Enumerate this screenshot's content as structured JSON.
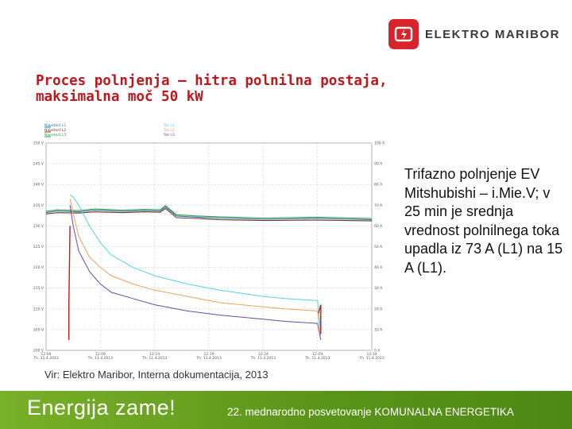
{
  "brand": {
    "name": "ELEKTRO MARIBOR",
    "colors": {
      "brand_red": "#d8232a",
      "title_red": "#c0161c",
      "footer_green": "#6aa221"
    }
  },
  "slide": {
    "title_lines": [
      "Proces polnjenja – hitra polnilna postaja,",
      "maksimalna moč 50 kW"
    ],
    "caption": "Trifazno polnjenje EV Mitshubishi – i.Mie.V; v 25 min je srednja vrednost polnilnega toka upadla iz 73 A (L1) na 15 A (L1).",
    "source": "Vir: Elektro Maribor, Interna dokumentacija, 2013"
  },
  "footer": {
    "slogan": "Energija zame!",
    "conference": "22. mednarodno posvetovanje KOMUNALNA ENERGETIKA"
  },
  "chart_data": {
    "type": "line",
    "legend_left": [
      "Napetost L1",
      "Napetost L2",
      "Napetost L3"
    ],
    "legend_right": [
      "Tok L1",
      "Tok L2",
      "Tok L3"
    ],
    "x_ticks": [
      {
        "time": "12:04",
        "date": "Th. 11.4.2013"
      },
      {
        "time": "12:09",
        "date": "Th. 11.4.2013"
      },
      {
        "time": "12:14",
        "date": "Th. 11.4.2013"
      },
      {
        "time": "12:19",
        "date": "Th. 11.4.2013"
      },
      {
        "time": "12:24",
        "date": "Th. 11.4.2013"
      },
      {
        "time": "12:29",
        "date": "Th. 11.4.2013"
      },
      {
        "time": "12:34",
        "date": "Th. 11.4.2013"
      }
    ],
    "y_left": [
      "250 V",
      "245 V",
      "240 V",
      "235 V",
      "230 V",
      "225 V",
      "220 V",
      "215 V",
      "210 V",
      "205 V",
      "200 V"
    ],
    "y_right": [
      "100 A",
      "90 A",
      "80 A",
      "70 A",
      "60 A",
      "50 A",
      "40 A",
      "30 A",
      "20 A",
      "10 A",
      "0 A"
    ],
    "ylim_left": [
      200,
      250
    ],
    "ylim_right": [
      0,
      100
    ],
    "xlim_min": [
      0,
      30
    ],
    "series_colors": {
      "voltage": [
        "#2a7aa8",
        "#7a3a2a",
        "#3a9a4a"
      ],
      "current": [
        "#4fd4e6",
        "#f0a060",
        "#6a4aa8"
      ],
      "marker": "#c81818"
    },
    "voltage_series": [
      {
        "name": "Napetost L1",
        "x": [
          0,
          1,
          3,
          4.5,
          7,
          9,
          10.5,
          11,
          12,
          14,
          16,
          20,
          25,
          30
        ],
        "y": [
          233.2,
          233.6,
          233.4,
          233.8,
          233.5,
          233.7,
          233.6,
          234.6,
          232.4,
          232.1,
          231.9,
          231.6,
          231.8,
          231.5
        ]
      },
      {
        "name": "Napetost L2",
        "x": [
          0,
          1,
          3,
          4.5,
          7,
          9,
          10.5,
          11,
          12,
          14,
          16,
          20,
          25,
          30
        ],
        "y": [
          232.9,
          233.2,
          233.1,
          233.4,
          233.2,
          233.4,
          233.3,
          234.2,
          232.0,
          231.8,
          231.5,
          231.3,
          231.4,
          231.2
        ]
      },
      {
        "name": "Napetost L3",
        "x": [
          0,
          1,
          3,
          4.5,
          7,
          9,
          10.5,
          11,
          12,
          14,
          16,
          20,
          25,
          30
        ],
        "y": [
          233.5,
          233.9,
          233.7,
          234.1,
          233.8,
          234.0,
          233.9,
          234.9,
          232.7,
          232.4,
          232.2,
          231.9,
          232.1,
          231.8
        ]
      }
    ],
    "current_series": [
      {
        "name": "Tok L1",
        "x": [
          2.2,
          2.5,
          3,
          4,
          5,
          6,
          8,
          10,
          13,
          16,
          20,
          22,
          25,
          25.3
        ],
        "y": [
          75,
          74,
          70,
          60,
          52,
          46,
          40,
          36,
          32,
          29,
          26,
          25,
          24,
          9
        ]
      },
      {
        "name": "Tok L2",
        "x": [
          2.2,
          2.5,
          3,
          4,
          5,
          6,
          8,
          10,
          13,
          16,
          20,
          22,
          25,
          25.3
        ],
        "y": [
          73,
          66,
          55,
          45,
          40,
          36,
          32,
          29,
          26,
          23,
          21,
          20,
          19,
          7
        ]
      },
      {
        "name": "Tok L3",
        "x": [
          2.2,
          2.5,
          3,
          4,
          5,
          6,
          8,
          10,
          13,
          16,
          20,
          22,
          25,
          25.3
        ],
        "y": [
          70,
          60,
          48,
          38,
          32,
          28,
          25,
          22,
          19,
          17,
          15,
          14,
          13,
          5
        ]
      }
    ],
    "markers": [
      {
        "x": [
          2.1,
          2.1,
          2.2
        ],
        "y": [
          5,
          22,
          60
        ]
      },
      {
        "x": [
          25.1,
          25.3,
          25.3
        ],
        "y": [
          18,
          22,
          8
        ]
      }
    ],
    "grid": true
  }
}
